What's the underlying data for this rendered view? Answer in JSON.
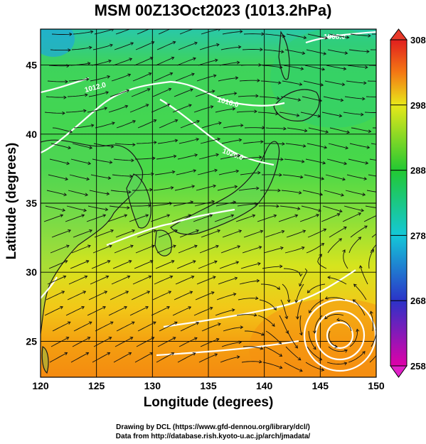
{
  "title": "MSM 00Z13Oct2023 (1013.2hPa)",
  "xaxis": {
    "label": "Longitude (degrees)",
    "ticks": [
      120,
      125,
      130,
      135,
      140,
      145,
      150
    ],
    "range": [
      120,
      150
    ]
  },
  "yaxis": {
    "label": "Latitude  (degrees)",
    "ticks": [
      25,
      30,
      35,
      40,
      45
    ],
    "range": [
      22.4,
      47.6
    ]
  },
  "colorbar": {
    "ticks": [
      258,
      268,
      278,
      288,
      298,
      308
    ],
    "range": [
      258,
      308
    ],
    "colors": [
      "#e000a8",
      "#2b33c8",
      "#14c8d8",
      "#22c832",
      "#e8e81a",
      "#f47814",
      "#e01e1e"
    ]
  },
  "isobars": [
    {
      "label": "1008.0",
      "color": "#ffffff"
    },
    {
      "label": "1016.0",
      "color": "#ffffff"
    },
    {
      "label": "1020.0",
      "color": "#ffffff"
    },
    {
      "label": "1012.0",
      "color": "#ffffff"
    }
  ],
  "credits": [
    "Drawing by DCL (https://www.gfd-dennou.org/library/dcl/)",
    "Data from http://database.rish.kyoto-u.ac.jp/arch/jmadata/"
  ]
}
